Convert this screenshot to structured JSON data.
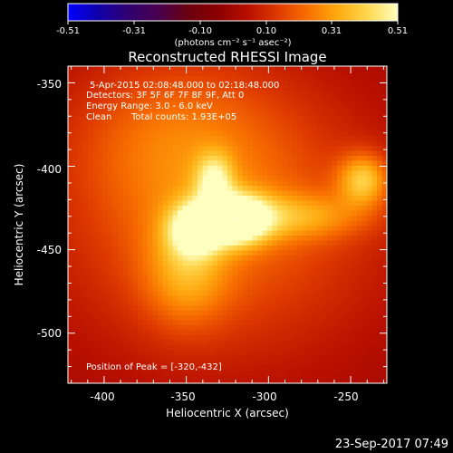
{
  "colorbar": {
    "tick_labels": [
      "-0.51",
      "-0.31",
      "-0.10",
      "0.10",
      "0.31",
      "0.51"
    ],
    "unit_label": "(photons cm⁻² s⁻¹ asec⁻²)",
    "range": [
      -0.51,
      0.51
    ]
  },
  "chart_data": {
    "type": "heatmap",
    "title": "Reconstructed RHESSI Image",
    "xlabel": "Heliocentric X (arcsec)",
    "ylabel": "Heliocentric Y (arcsec)",
    "xlim": [
      -422,
      -228
    ],
    "ylim": [
      -530,
      -340
    ],
    "x_ticks": [
      "-400",
      "-350",
      "-300",
      "-250"
    ],
    "y_ticks": [
      "-350",
      "-400",
      "-450",
      "-500"
    ],
    "annotations": {
      "time": "5-Apr-2015 02:08:48.000 to 02:18:48.000",
      "detectors": "Detectors: 3F 5F 6F 7F 8F 9F, Att 0",
      "energy": "Energy Range: 3.0 - 6.0 keV",
      "clean": "Clean",
      "counts": "Total counts: 1.93E+05",
      "peak": "Position of Peak = [-320,-432]"
    },
    "peak": {
      "x": -320,
      "y": -432
    },
    "sources": [
      {
        "x": -320,
        "y": -432,
        "sx": 14,
        "sy": 10,
        "amp": 0.51
      },
      {
        "x": -345,
        "y": -438,
        "sx": 11,
        "sy": 11,
        "amp": 0.36
      },
      {
        "x": -333,
        "y": -408,
        "sx": 8,
        "sy": 11,
        "amp": 0.26
      },
      {
        "x": -242,
        "y": -408,
        "sx": 11,
        "sy": 11,
        "amp": 0.3
      },
      {
        "x": -280,
        "y": -430,
        "sx": 30,
        "sy": 10,
        "amp": 0.18
      },
      {
        "x": -350,
        "y": -465,
        "sx": 18,
        "sy": 22,
        "amp": 0.18
      },
      {
        "x": -330,
        "y": -430,
        "sx": 70,
        "sy": 60,
        "amp": 0.22
      },
      {
        "x": -360,
        "y": -380,
        "sx": 45,
        "sy": 35,
        "amp": 0.12
      }
    ],
    "colormap": [
      "#0000ff",
      "#1000aa",
      "#300070",
      "#480050",
      "#6a0010",
      "#8c0000",
      "#b81000",
      "#de3a00",
      "#f87000",
      "#ffaa10",
      "#ffd850",
      "#ffffc0"
    ]
  },
  "footer": {
    "timestamp": "23-Sep-2017 07:49"
  }
}
